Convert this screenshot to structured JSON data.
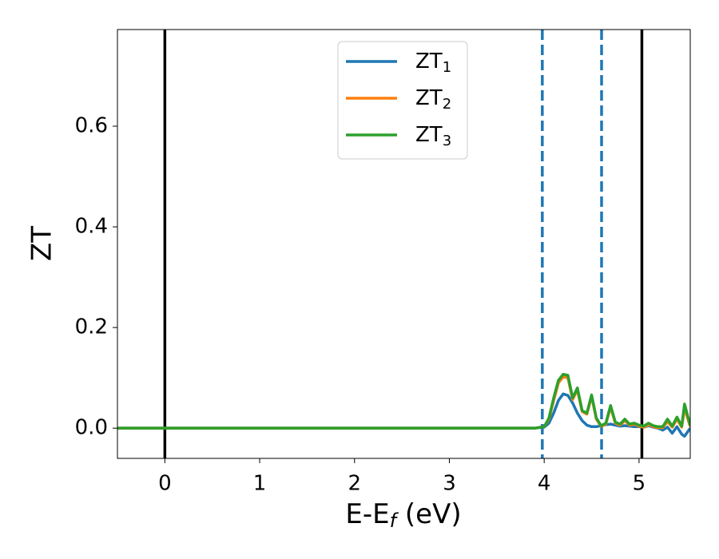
{
  "chart_data": {
    "type": "line",
    "y_label": "ZT",
    "x_label": [
      "E-E",
      "f",
      " (eV)"
    ],
    "xlim": [
      -0.5,
      5.54
    ],
    "ylim": [
      -0.06,
      0.792
    ],
    "xticks": [
      0,
      1,
      2,
      3,
      4,
      5
    ],
    "yticks": [
      {
        "value": 0,
        "label": "0.0"
      },
      {
        "value": 0.2,
        "label": "0.2"
      },
      {
        "value": 0.4,
        "label": "0.4"
      },
      {
        "value": 0.6,
        "label": "0.6"
      }
    ],
    "legend": "upper center",
    "vlines": [
      {
        "x": 0,
        "color": "#000000",
        "style": "solid"
      },
      {
        "x": 5.03,
        "color": "#000000",
        "style": "solid"
      },
      {
        "x": 3.98,
        "color": "#1f77b4",
        "style": "dashed"
      },
      {
        "x": 4.605,
        "color": "#1f77b4",
        "style": "dashed"
      }
    ],
    "x": [
      -0.5,
      3.9,
      4.0,
      4.05,
      4.1,
      4.15,
      4.2,
      4.25,
      4.3,
      4.35,
      4.4,
      4.45,
      4.5,
      4.55,
      4.6,
      4.65,
      4.7,
      4.75,
      4.8,
      4.85,
      4.9,
      4.95,
      5.0,
      5.05,
      5.1,
      5.15,
      5.2,
      5.25,
      5.3,
      5.35,
      5.4,
      5.45,
      5.48,
      5.54
    ],
    "series": [
      {
        "name": [
          "ZT",
          "1"
        ],
        "color": "#1f77b4",
        "values": [
          0,
          0,
          0.002,
          0.01,
          0.03,
          0.055,
          0.068,
          0.065,
          0.05,
          0.03,
          0.015,
          0.006,
          0.003,
          0.003,
          0.005,
          0.007,
          0.008,
          0.006,
          0.004,
          0.005,
          0.004,
          0.003,
          0.003,
          0.002,
          0.005,
          0.002,
          0.0,
          -0.004,
          0.002,
          -0.01,
          0.003,
          -0.012,
          -0.016,
          0.0
        ]
      },
      {
        "name": [
          "ZT",
          "2"
        ],
        "color": "#ff7f0e",
        "values": [
          0,
          0,
          0.003,
          0.018,
          0.055,
          0.09,
          0.102,
          0.1,
          0.057,
          0.076,
          0.033,
          0.028,
          0.063,
          0.018,
          0.004,
          0.008,
          0.042,
          0.01,
          0.006,
          0.015,
          0.006,
          0.008,
          0.004,
          0.002,
          0.007,
          0.003,
          0.001,
          0.001,
          0.013,
          0.002,
          0.018,
          0.002,
          0.04,
          0.003
        ]
      },
      {
        "name": [
          "ZT",
          "3"
        ],
        "color": "#2ca02c",
        "values": [
          0,
          0,
          0.003,
          0.02,
          0.06,
          0.095,
          0.107,
          0.105,
          0.06,
          0.08,
          0.035,
          0.03,
          0.066,
          0.02,
          0.005,
          0.01,
          0.045,
          0.012,
          0.008,
          0.018,
          0.008,
          0.01,
          0.006,
          0.004,
          0.01,
          0.005,
          0.003,
          0.003,
          0.018,
          0.004,
          0.022,
          0.004,
          0.048,
          0.005
        ]
      }
    ]
  }
}
